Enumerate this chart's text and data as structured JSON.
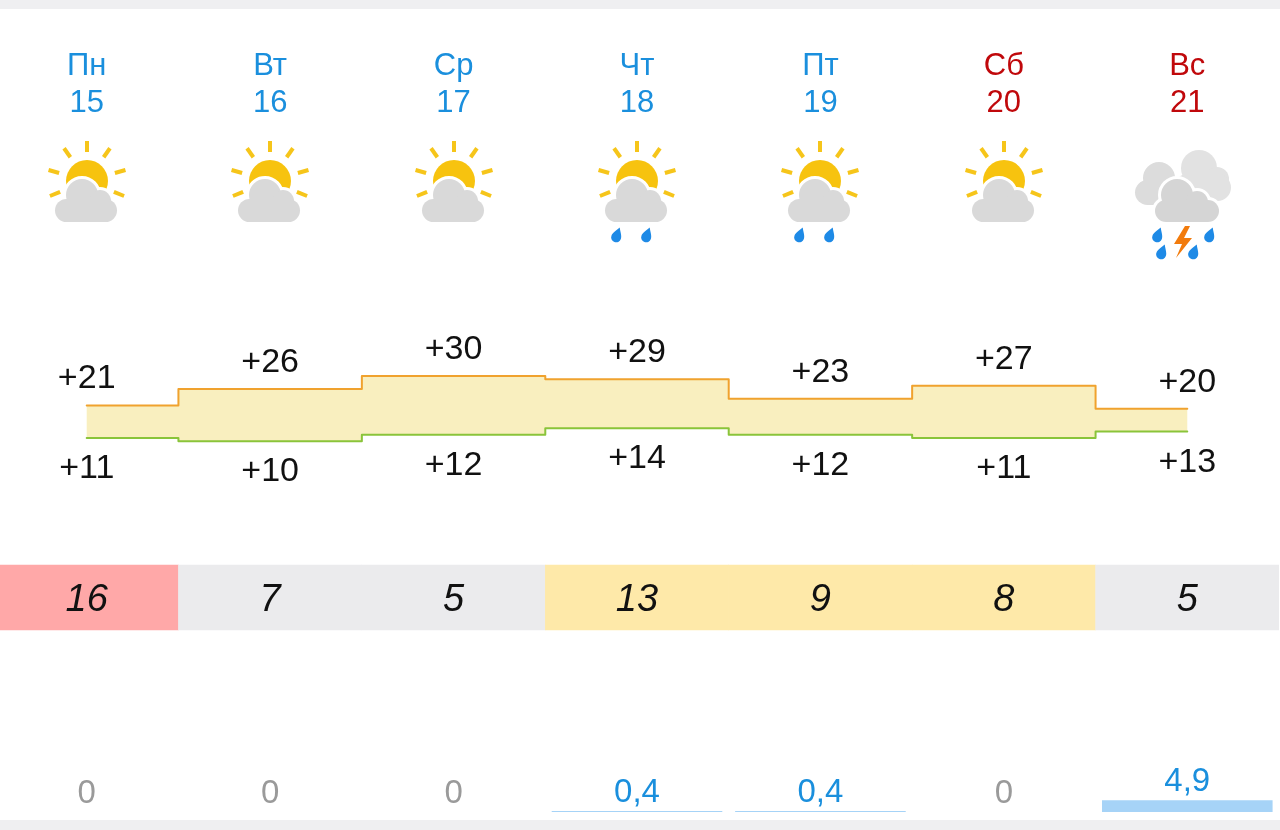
{
  "chart_data": [
    {
      "type": "step",
      "categories": [
        "Пн\n15",
        "Вт\n16",
        "Ср\n17",
        "Чт\n18",
        "Пт\n19",
        "Сб\n20",
        "Вс\n21"
      ],
      "series": [
        {
          "color": "#f0a22e",
          "values": [
            21,
            26,
            30,
            29,
            23,
            27,
            20
          ],
          "value_labels": [
            "+21",
            "+26",
            "+30",
            "+29",
            "+23",
            "+27",
            "+20"
          ],
          "lower": [
            11,
            10,
            12,
            14,
            12,
            11,
            13
          ],
          "upper": [
            21,
            26,
            30,
            29,
            23,
            27,
            20
          ]
        },
        {
          "color": "#8ac43a",
          "values": [
            11,
            10,
            12,
            14,
            12,
            11,
            13
          ],
          "value_labels": [
            "+11",
            "+10",
            "+12",
            "+14",
            "+12",
            "+11",
            "+13"
          ]
        }
      ],
      "grid": false,
      "marker": "none"
    },
    {
      "type": "heatmap",
      "categories": [
        null,
        null,
        null,
        null,
        null,
        null,
        null
      ],
      "y_categories": [
        null
      ],
      "cells": [
        [
          16,
          7,
          5,
          13,
          9,
          8,
          5
        ]
      ],
      "colors": [
        "#ffa8a8",
        "#ebebed",
        "#ebebed",
        "#fee9a9",
        "#fee9a9",
        "#fee9a9",
        "#ebebed"
      ],
      "data_labels": true
    },
    {
      "type": "bar",
      "categories": [
        null,
        null,
        null,
        null,
        null,
        null,
        null
      ],
      "values": [
        0,
        0,
        0,
        0.4,
        0.4,
        0,
        4.9
      ],
      "value_labels": [
        "0",
        "0",
        "0",
        "0,4",
        "0,4",
        "0",
        "4,9"
      ],
      "color": "#a6d3f7"
    }
  ]
}
